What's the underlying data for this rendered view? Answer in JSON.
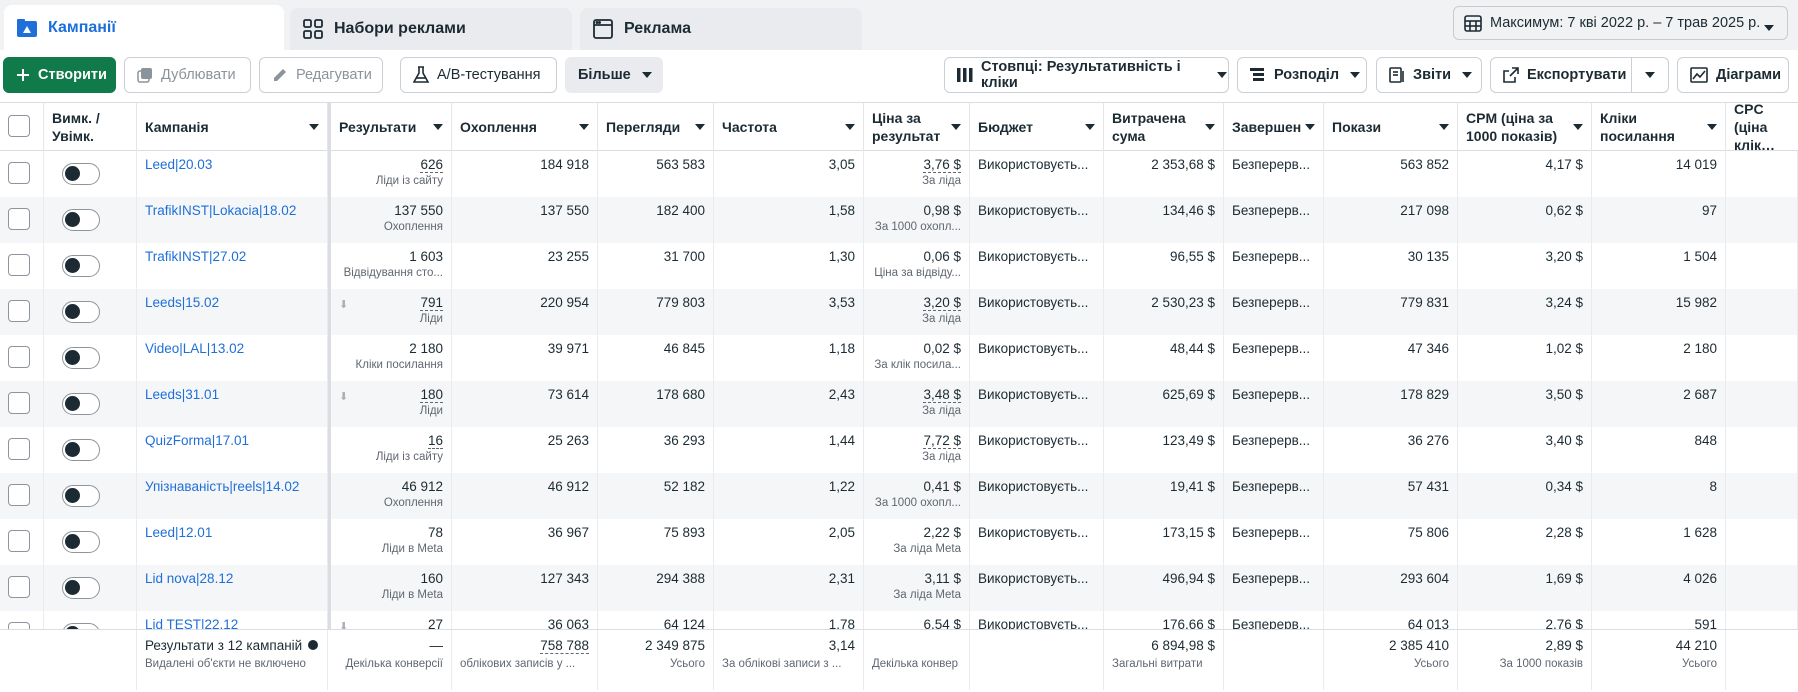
{
  "tabs": [
    {
      "label": "Кампанії",
      "icon": "folder-icon"
    },
    {
      "label": "Набори реклами",
      "icon": "grid-icon"
    },
    {
      "label": "Реклама",
      "icon": "ad-icon"
    }
  ],
  "date_range": "Максимум: 7 кві 2022 р. – 7 трав 2025 р.",
  "toolbar": {
    "create": "Створити",
    "duplicate": "Дублювати",
    "edit": "Редагувати",
    "ab_test": "A/B-тестування",
    "more": "Більше",
    "columns": "Стовпці: Результативність і кліки",
    "breakdown": "Розподіл",
    "reports": "Звіти",
    "export": "Експортувати",
    "charts": "Діаграми"
  },
  "columns": {
    "toggle": "Вимк. / Увімк.",
    "campaign": "Кампанія",
    "results": "Результати",
    "reach": "Охоплення",
    "views": "Перегляди",
    "frequency": "Частота",
    "cost_per_result": "Ціна за результат",
    "budget": "Бюджет",
    "spent": "Витрачена сума",
    "ends": "Завершен",
    "impressions": "Покази",
    "cpm": "CPM (ціна за 1000 показів)",
    "link_clicks": "Кліки посилання",
    "cpc": "CPC (ціна клік…"
  },
  "rows": [
    {
      "name": "Leed|20.03",
      "results": "626",
      "results_sub": "Ліди із сайту",
      "reach": "184 918",
      "views": "563 583",
      "frequency": "3,05",
      "cost": "3,76 $",
      "cost_sub": "За ліда",
      "budget": "Використовуєть...",
      "spent": "2 353,68 $",
      "ends": "Безперерв...",
      "impressions": "563 852",
      "cpm": "4,17 $",
      "clicks": "14 019",
      "dotted": true,
      "dl": false
    },
    {
      "name": "TrafikINST|Lokacia|18.02",
      "results": "137 550",
      "results_sub": "Охоплення",
      "reach": "137 550",
      "views": "182 400",
      "frequency": "1,58",
      "cost": "0,98 $",
      "cost_sub": "За 1000 охопл...",
      "budget": "Використовуєть...",
      "spent": "134,46 $",
      "ends": "Безперерв...",
      "impressions": "217 098",
      "cpm": "0,62 $",
      "clicks": "97",
      "dotted": false,
      "dl": false
    },
    {
      "name": "TrafikINST|27.02",
      "results": "1 603",
      "results_sub": "Відвідування сто...",
      "reach": "23 255",
      "views": "31 700",
      "frequency": "1,30",
      "cost": "0,06 $",
      "cost_sub": "Ціна за відвіду...",
      "budget": "Використовуєть...",
      "spent": "96,55 $",
      "ends": "Безперерв...",
      "impressions": "30 135",
      "cpm": "3,20 $",
      "clicks": "1 504",
      "dotted": false,
      "dl": false
    },
    {
      "name": "Leeds|15.02",
      "results": "791",
      "results_sub": "Ліди",
      "reach": "220 954",
      "views": "779 803",
      "frequency": "3,53",
      "cost": "3,20 $",
      "cost_sub": "За ліда",
      "budget": "Використовуєть...",
      "spent": "2 530,23 $",
      "ends": "Безперерв...",
      "impressions": "779 831",
      "cpm": "3,24 $",
      "clicks": "15 982",
      "dotted": true,
      "dl": true
    },
    {
      "name": "Video|LAL|13.02",
      "results": "2 180",
      "results_sub": "Кліки посилання",
      "reach": "39 971",
      "views": "46 845",
      "frequency": "1,18",
      "cost": "0,02 $",
      "cost_sub": "За клік посила...",
      "budget": "Використовуєть...",
      "spent": "48,44 $",
      "ends": "Безперерв...",
      "impressions": "47 346",
      "cpm": "1,02 $",
      "clicks": "2 180",
      "dotted": false,
      "dl": false
    },
    {
      "name": "Leeds|31.01",
      "results": "180",
      "results_sub": "Ліди",
      "reach": "73 614",
      "views": "178 680",
      "frequency": "2,43",
      "cost": "3,48 $",
      "cost_sub": "За ліда",
      "budget": "Використовуєть...",
      "spent": "625,69 $",
      "ends": "Безперерв...",
      "impressions": "178 829",
      "cpm": "3,50 $",
      "clicks": "2 687",
      "dotted": true,
      "dl": true
    },
    {
      "name": "QuizForma|17.01",
      "results": "16",
      "results_sub": "Ліди із сайту",
      "reach": "25 263",
      "views": "36 293",
      "frequency": "1,44",
      "cost": "7,72 $",
      "cost_sub": "За ліда",
      "budget": "Використовуєть...",
      "spent": "123,49 $",
      "ends": "Безперерв...",
      "impressions": "36 276",
      "cpm": "3,40 $",
      "clicks": "848",
      "dotted": true,
      "dl": false
    },
    {
      "name": "Упізнаваність|reels|14.02",
      "results": "46 912",
      "results_sub": "Охоплення",
      "reach": "46 912",
      "views": "52 182",
      "frequency": "1,22",
      "cost": "0,41 $",
      "cost_sub": "За 1000 охопл...",
      "budget": "Використовуєть...",
      "spent": "19,41 $",
      "ends": "Безперерв...",
      "impressions": "57 431",
      "cpm": "0,34 $",
      "clicks": "8",
      "dotted": false,
      "dl": false
    },
    {
      "name": "Leed|12.01",
      "results": "78",
      "results_sub": "Ліди в Meta",
      "reach": "36 967",
      "views": "75 893",
      "frequency": "2,05",
      "cost": "2,22 $",
      "cost_sub": "За ліда Meta",
      "budget": "Використовуєть...",
      "spent": "173,15 $",
      "ends": "Безперерв...",
      "impressions": "75 806",
      "cpm": "2,28 $",
      "clicks": "1 628",
      "dotted": false,
      "dl": false
    },
    {
      "name": "Lid nova|28.12",
      "results": "160",
      "results_sub": "Ліди в Meta",
      "reach": "127 343",
      "views": "294 388",
      "frequency": "2,31",
      "cost": "3,11 $",
      "cost_sub": "За ліда Meta",
      "budget": "Використовуєть...",
      "spent": "496,94 $",
      "ends": "Безперерв...",
      "impressions": "293 604",
      "cpm": "1,69 $",
      "clicks": "4 026",
      "dotted": false,
      "dl": false
    },
    {
      "name": "Lid TEST|22.12",
      "results": "27",
      "results_sub": "",
      "reach": "36 063",
      "views": "64 124",
      "frequency": "1,78",
      "cost": "6,54 $",
      "cost_sub": "",
      "budget": "Використовуєть...",
      "spent": "176,66 $",
      "ends": "Безперерв...",
      "impressions": "64 013",
      "cpm": "2,76 $",
      "clicks": "591",
      "dotted": false,
      "dl": true
    }
  ],
  "totals": {
    "label": "Результати з 12 кампаній",
    "label_sub": "Видалені об'єкти не включено",
    "results": "—",
    "results_sub": "Декілька конверсії",
    "reach": "758 788",
    "reach_sub": "облікових записів у ...",
    "views": "2 349 875",
    "views_sub": "Усього",
    "frequency": "3,14",
    "frequency_sub": "За облікові записи з ...",
    "cost_sub": "Декілька конвер",
    "spent": "6 894,98 $",
    "spent_sub": "Загальні витрати",
    "impressions": "2 385 410",
    "impressions_sub": "Усього",
    "cpm": "2,89 $",
    "cpm_sub": "За 1000 показів",
    "clicks": "44 210",
    "clicks_sub": "Усього"
  },
  "colors": {
    "accent_blue": "#1e6fd9",
    "create_green": "#117a4a"
  }
}
